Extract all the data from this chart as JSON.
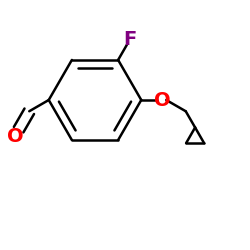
{
  "bg_color": "#ffffff",
  "bond_color": "#000000",
  "oxygen_color": "#ff0000",
  "fluorine_color": "#800080",
  "label_F": "F",
  "label_O_ether": "O",
  "label_O_aldehyde": "O",
  "fig_width": 2.5,
  "fig_height": 2.5,
  "dpi": 100,
  "line_width": 1.8,
  "font_size_atoms": 14
}
